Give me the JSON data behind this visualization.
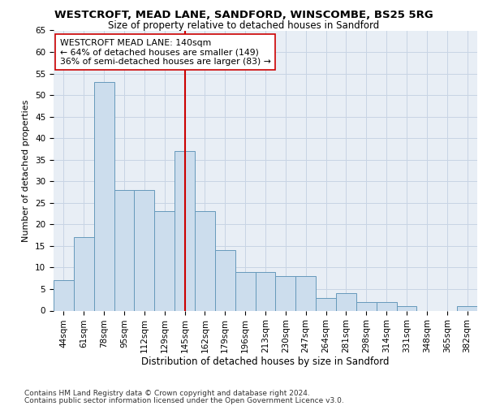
{
  "title1": "WESTCROFT, MEAD LANE, SANDFORD, WINSCOMBE, BS25 5RG",
  "title2": "Size of property relative to detached houses in Sandford",
  "xlabel": "Distribution of detached houses by size in Sandford",
  "ylabel": "Number of detached properties",
  "categories": [
    "44sqm",
    "61sqm",
    "78sqm",
    "95sqm",
    "112sqm",
    "129sqm",
    "145sqm",
    "162sqm",
    "179sqm",
    "196sqm",
    "213sqm",
    "230sqm",
    "247sqm",
    "264sqm",
    "281sqm",
    "298sqm",
    "314sqm",
    "331sqm",
    "348sqm",
    "365sqm",
    "382sqm"
  ],
  "values": [
    7,
    17,
    53,
    28,
    28,
    23,
    37,
    23,
    14,
    9,
    9,
    8,
    8,
    3,
    4,
    2,
    2,
    1,
    0,
    0,
    1
  ],
  "bar_color": "#ccdded",
  "bar_edge_color": "#6699bb",
  "vline_x": 6,
  "vline_color": "#cc0000",
  "annotation_text": "WESTCROFT MEAD LANE: 140sqm\n← 64% of detached houses are smaller (149)\n36% of semi-detached houses are larger (83) →",
  "annotation_box_color": "#ffffff",
  "annotation_box_edge": "#cc0000",
  "ylim": [
    0,
    65
  ],
  "yticks": [
    0,
    5,
    10,
    15,
    20,
    25,
    30,
    35,
    40,
    45,
    50,
    55,
    60,
    65
  ],
  "footer1": "Contains HM Land Registry data © Crown copyright and database right 2024.",
  "footer2": "Contains public sector information licensed under the Open Government Licence v3.0.",
  "bg_color": "#ffffff",
  "plot_bg_color": "#e8eef5",
  "grid_color": "#c8d4e4",
  "title1_fontsize": 9.5,
  "title2_fontsize": 8.5,
  "axis_fontsize": 7.5,
  "ylabel_fontsize": 8,
  "xlabel_fontsize": 8.5,
  "footer_fontsize": 6.5,
  "annotation_fontsize": 7.8
}
